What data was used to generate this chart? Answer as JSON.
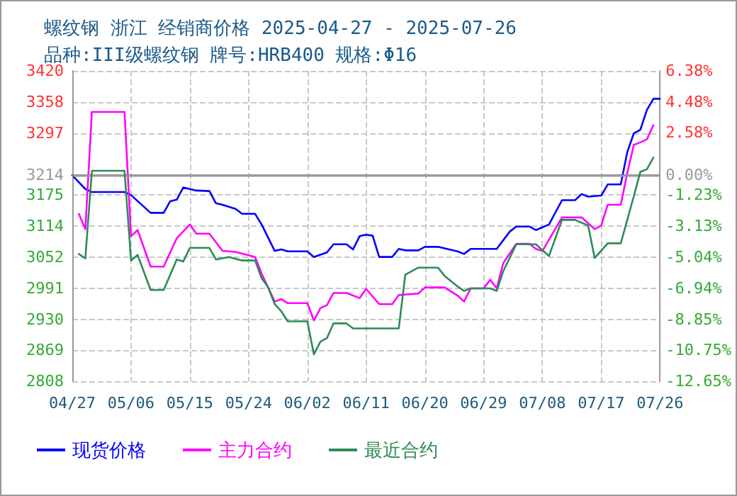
{
  "chart_data": {
    "type": "line",
    "title": "螺纹钢 浙江 经销商价格 2025-04-27 - 2025-07-26",
    "subtitle": "品种:III级螺纹钢 牌号:HRB400 规格:Φ16",
    "xlim": [
      "--04-27",
      "--07-26"
    ],
    "xticks": [
      {
        "value": "--04-27",
        "label": "04/27"
      },
      {
        "value": "--05-06",
        "label": "05/06"
      },
      {
        "value": "--05-15",
        "label": "05/15"
      },
      {
        "value": "--05-24",
        "label": "05/24"
      },
      {
        "value": "--06-02",
        "label": "06/02"
      },
      {
        "value": "--06-11",
        "label": "06/11"
      },
      {
        "value": "--06-20",
        "label": "06/20"
      },
      {
        "value": "--06-29",
        "label": "06/29"
      },
      {
        "value": "--07-08",
        "label": "07/08"
      },
      {
        "value": "--07-17",
        "label": "07/17"
      },
      {
        "value": "--07-26",
        "label": "07/26"
      }
    ],
    "ylim": [
      2808,
      3420
    ],
    "yticks": [
      2808,
      2869,
      2930,
      2991,
      3052,
      3114,
      3175,
      3214,
      3297,
      3358,
      3420
    ],
    "y2lim": [
      -12.65,
      6.38
    ],
    "y2ticks": [
      {
        "value": -12.65,
        "label": "-12.65%"
      },
      {
        "value": -10.75,
        "label": "-10.75%"
      },
      {
        "value": -8.85,
        "label": "-8.85%"
      },
      {
        "value": -6.94,
        "label": "-6.94%"
      },
      {
        "value": -5.04,
        "label": "-5.04%"
      },
      {
        "value": -3.13,
        "label": "-3.13%"
      },
      {
        "value": -1.23,
        "label": "-1.23%"
      },
      {
        "value": 0,
        "label": "0.00%"
      },
      {
        "value": 2.58,
        "label": "2.58%"
      },
      {
        "value": 4.48,
        "label": "4.48%"
      },
      {
        "value": 6.38,
        "label": "6.38%"
      }
    ],
    "ref_lines": [
      {
        "axis": "y",
        "value": 3214,
        "label": null,
        "color": "#999999",
        "line_style": "solid"
      }
    ],
    "grid": true,
    "legend": "bottom left",
    "marker": "none",
    "line_style": "solid",
    "series": [
      {
        "name": "现货价格",
        "color": "#0000ff",
        "x": [
          "--04-27",
          "--04-29",
          "--04-30",
          "--05-05",
          "--05-06",
          "--05-09",
          "--05-11",
          "--05-12",
          "--05-13",
          "--05-14",
          "--05-16",
          "--05-18",
          "--05-19",
          "--05-20",
          "--05-22",
          "--05-23",
          "--05-25",
          "--05-26",
          "--05-28",
          "--05-29",
          "--05-30",
          "--06-02",
          "--06-03",
          "--06-05",
          "--06-06",
          "--06-08",
          "--06-09",
          "--06-10",
          "--06-11",
          "--06-12",
          "--06-13",
          "--06-15",
          "--06-16",
          "--06-17",
          "--06-19",
          "--06-20",
          "--06-22",
          "--06-25",
          "--06-26",
          "--06-27",
          "--07-01",
          "--07-03",
          "--07-04",
          "--07-06",
          "--07-07",
          "--07-09",
          "--07-11",
          "--07-13",
          "--07-14",
          "--07-15",
          "--07-17",
          "--07-18",
          "--07-20",
          "--07-21",
          "--07-22",
          "--07-23",
          "--07-24",
          "--07-25",
          "--07-26"
        ],
        "values": [
          3214,
          3187,
          3181,
          3181,
          3175,
          3140,
          3140,
          3163,
          3166,
          3190,
          3184,
          3183,
          3159,
          3156,
          3148,
          3138,
          3138,
          3117,
          3065,
          3068,
          3064,
          3064,
          3053,
          3062,
          3078,
          3078,
          3068,
          3094,
          3097,
          3095,
          3053,
          3053,
          3069,
          3066,
          3066,
          3073,
          3073,
          3064,
          3059,
          3069,
          3069,
          3103,
          3113,
          3113,
          3106,
          3117,
          3165,
          3165,
          3177,
          3172,
          3174,
          3196,
          3196,
          3260,
          3297,
          3304,
          3343,
          3365,
          3365
        ]
      },
      {
        "name": "主力合约",
        "color": "#ff00ff",
        "x": [
          "--04-28",
          "--04-29",
          "--04-30",
          "--05-05",
          "--05-06",
          "--05-07",
          "--05-09",
          "--05-11",
          "--05-13",
          "--05-15",
          "--05-16",
          "--05-18",
          "--05-20",
          "--05-22",
          "--05-25",
          "--05-26",
          "--05-28",
          "--05-29",
          "--05-30",
          "--06-02",
          "--06-03",
          "--06-04",
          "--06-05",
          "--06-06",
          "--06-08",
          "--06-10",
          "--06-11",
          "--06-13",
          "--06-15",
          "--06-16",
          "--06-19",
          "--06-20",
          "--06-23",
          "--06-25",
          "--06-26",
          "--06-27",
          "--06-29",
          "--06-30",
          "--07-01",
          "--07-02",
          "--07-04",
          "--07-06",
          "--07-07",
          "--07-08",
          "--07-11",
          "--07-14",
          "--07-16",
          "--07-17",
          "--07-18",
          "--07-20",
          "--07-21",
          "--07-22",
          "--07-23",
          "--07-24",
          "--07-25"
        ],
        "values": [
          3138,
          3108,
          3339,
          3339,
          3094,
          3106,
          3034,
          3034,
          3090,
          3117,
          3099,
          3099,
          3065,
          3063,
          3053,
          3020,
          2965,
          2970,
          2962,
          2962,
          2928,
          2952,
          2958,
          2982,
          2982,
          2972,
          2990,
          2960,
          2960,
          2978,
          2981,
          2993,
          2993,
          2977,
          2965,
          2991,
          2991,
          3008,
          2991,
          3041,
          3079,
          3079,
          3069,
          3065,
          3131,
          3131,
          3108,
          3115,
          3156,
          3156,
          3219,
          3274,
          3279,
          3285,
          3313
        ]
      },
      {
        "name": "最近合约",
        "color": "#2e8b57",
        "x": [
          "--04-28",
          "--04-29",
          "--04-30",
          "--05-05",
          "--05-06",
          "--05-07",
          "--05-09",
          "--05-11",
          "--05-13",
          "--05-14",
          "--05-15",
          "--05-18",
          "--05-19",
          "--05-21",
          "--05-23",
          "--05-25",
          "--05-26",
          "--05-27",
          "--05-28",
          "--05-29",
          "--05-30",
          "--06-02",
          "--06-03",
          "--06-04",
          "--06-05",
          "--06-06",
          "--06-08",
          "--06-09",
          "--06-16",
          "--06-17",
          "--06-19",
          "--06-22",
          "--06-23",
          "--06-25",
          "--06-26",
          "--06-27",
          "--06-30",
          "--07-01",
          "--07-02",
          "--07-04",
          "--07-07",
          "--07-09",
          "--07-11",
          "--07-13",
          "--07-15",
          "--07-16",
          "--07-18",
          "--07-20",
          "--07-22",
          "--07-23",
          "--07-24",
          "--07-25"
        ],
        "values": [
          3059,
          3050,
          3223,
          3223,
          3046,
          3057,
          2988,
          2988,
          3048,
          3044,
          3071,
          3071,
          3048,
          3053,
          3046,
          3046,
          3011,
          2993,
          2960,
          2946,
          2926,
          2926,
          2861,
          2886,
          2893,
          2922,
          2922,
          2912,
          2912,
          3018,
          3032,
          3032,
          3016,
          2995,
          2986,
          2991,
          2991,
          2986,
          3025,
          3078,
          3078,
          3055,
          3126,
          3126,
          3115,
          3051,
          3080,
          3080,
          3173,
          3221,
          3226,
          3249
        ]
      }
    ]
  }
}
